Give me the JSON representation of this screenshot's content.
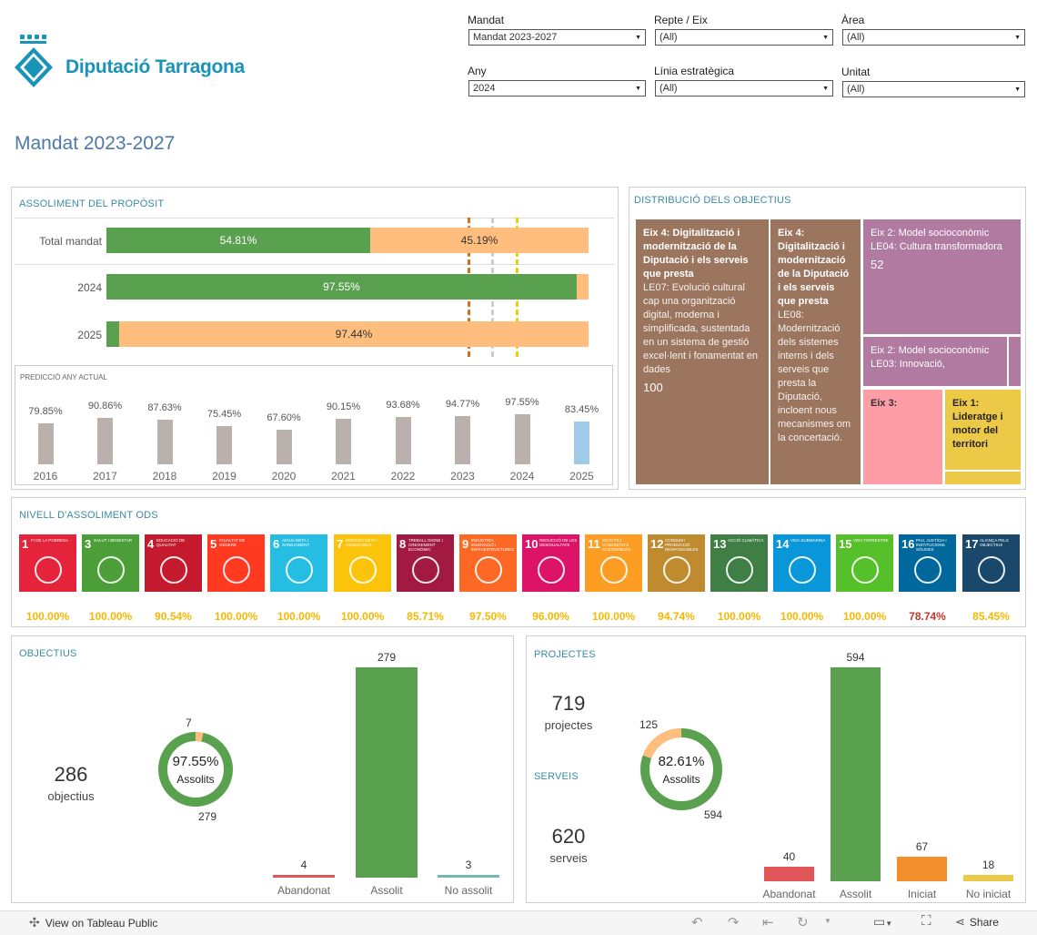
{
  "header": {
    "logo_text": "Diputació Tarragona",
    "page_title": "Mandat 2023-2027"
  },
  "filters": {
    "mandat": {
      "label": "Mandat",
      "value": "Mandat 2023-2027"
    },
    "repte": {
      "label": "Repte / Eix",
      "value": "(All)"
    },
    "area": {
      "label": "Àrea",
      "value": "(All)"
    },
    "any": {
      "label": "Any",
      "value": "2024"
    },
    "linia": {
      "label": "Línia estratègica",
      "value": "(All)"
    },
    "unitat": {
      "label": "Unitat",
      "value": "(All)"
    }
  },
  "proposit": {
    "title": "ASSOLIMENT DEL PROPÒSIT",
    "rows": [
      {
        "label": "Total mandat",
        "green": 54.81,
        "green_label": "54.81%",
        "orange_label": "45.19%"
      },
      {
        "label": "2024",
        "green": 97.55,
        "green_label": "97.55%",
        "orange_label": ""
      },
      {
        "label": "2025",
        "green": 2.56,
        "green_label": "",
        "orange_label": "97.44%"
      }
    ],
    "prediccio_title": "PREDICCIÓ ANY ACTUAL",
    "prediccio": [
      {
        "year": "2016",
        "value": 79.85,
        "label": "79.85%"
      },
      {
        "year": "2017",
        "value": 90.86,
        "label": "90.86%"
      },
      {
        "year": "2018",
        "value": 87.63,
        "label": "87.63%"
      },
      {
        "year": "2019",
        "value": 75.45,
        "label": "75.45%"
      },
      {
        "year": "2020",
        "value": 67.6,
        "label": "67.60%"
      },
      {
        "year": "2021",
        "value": 90.15,
        "label": "90.15%"
      },
      {
        "year": "2022",
        "value": 93.68,
        "label": "93.68%"
      },
      {
        "year": "2023",
        "value": 94.77,
        "label": "94.77%"
      },
      {
        "year": "2024",
        "value": 97.55,
        "label": "97.55%"
      },
      {
        "year": "2025",
        "value": 83.45,
        "label": "83.45%"
      }
    ]
  },
  "distribucio": {
    "title": "DISTRIBUCIÓ DELS OBJECTIUS",
    "cells": [
      {
        "head": "Eix 4: Digitalització i modernització de la Diputació i els serveis que presta",
        "body": "LE07: Evolució cultural cap una organització digital, moderna i simplificada, sustentada en un sistema de gestió excel·lent i fonamentat en dades",
        "num": "100"
      },
      {
        "head": "Eix 4: Digitalització i modernització de la Diputació i els serveis que presta",
        "body": "LE08: Modernització dels sistemes interns i dels serveis que presta la Diputació, incloent nous mecanismes om la concertació.",
        "num": ""
      },
      {
        "head": "Eix 2: Model socioconòmic",
        "body": "LE04: Cultura transformadora",
        "num": "52"
      },
      {
        "head": "Eix 2: Model socioconòmic",
        "body": "LE03: Innovació,",
        "num": ""
      },
      {
        "head": "Eix 3:",
        "body": "",
        "num": ""
      },
      {
        "head": "Eix 1: Lideratge i motor del territori",
        "body": "",
        "num": ""
      }
    ]
  },
  "ods": {
    "title": "NIVELL D'ASSOLIMENT ODS",
    "items": [
      {
        "n": "1",
        "label": "FI DE LA POBRESA",
        "pct": "100.00%",
        "color": "#e5243b"
      },
      {
        "n": "3",
        "label": "SALUT I BENESTAR",
        "pct": "100.00%",
        "color": "#4c9f38"
      },
      {
        "n": "4",
        "label": "EDUCACIÓ DE QUALITAT",
        "pct": "90.54%",
        "color": "#c5192d"
      },
      {
        "n": "5",
        "label": "IGUALTAT DE GÈNERE",
        "pct": "100.00%",
        "color": "#ff3a21"
      },
      {
        "n": "6",
        "label": "AIGUA NETA I SANEJAMENT",
        "pct": "100.00%",
        "color": "#26bde2"
      },
      {
        "n": "7",
        "label": "ENERGIA NETA I ASSEQUIBLE",
        "pct": "100.00%",
        "color": "#fcc30b"
      },
      {
        "n": "8",
        "label": "TREBALL DIGNE I CREIXEMENT ECONÒMIC",
        "pct": "85.71%",
        "color": "#a21942"
      },
      {
        "n": "9",
        "label": "INDÚSTRIA, INNOVACIÓ I INFRAESTRUCTURES",
        "pct": "97.50%",
        "color": "#fd6925"
      },
      {
        "n": "10",
        "label": "REDUCCIÓ DE LES DESIGUALTATS",
        "pct": "96.00%",
        "color": "#dd1367"
      },
      {
        "n": "11",
        "label": "CIUTATS I COMUNITATS SOSTENIBLES",
        "pct": "100.00%",
        "color": "#fd9d24"
      },
      {
        "n": "12",
        "label": "CONSUM I PRODUCCIÓ RESPONSABLES",
        "pct": "94.74%",
        "color": "#bf8b2e"
      },
      {
        "n": "13",
        "label": "ACCIÓ CLIMÀTICA",
        "pct": "100.00%",
        "color": "#3f7e44"
      },
      {
        "n": "14",
        "label": "VIDA SUBMARINA",
        "pct": "100.00%",
        "color": "#0a97d9"
      },
      {
        "n": "15",
        "label": "VIDA TERRESTRE",
        "pct": "100.00%",
        "color": "#56c02b"
      },
      {
        "n": "16",
        "label": "PAU, JUSTÍCIA I INSTITUCIONS SÒLIDES",
        "pct": "78.74%",
        "color": "#00689d"
      },
      {
        "n": "17",
        "label": "ALIANÇA PELS OBJECTIUS",
        "pct": "85.45%",
        "color": "#19486a"
      }
    ]
  },
  "objectius": {
    "title": "OBJECTIUS",
    "total": "286",
    "total_label": "objectius",
    "donut_pct": "97.55%",
    "donut_label": "Assolits",
    "donut_small": "7",
    "donut_big": "279",
    "bars": [
      {
        "label": "Abandonat",
        "value": 4,
        "color": "#e15759"
      },
      {
        "label": "Assolit",
        "value": 279,
        "color": "#59a14f"
      },
      {
        "label": "No assolit",
        "value": 3,
        "color": "#76b7b2"
      }
    ]
  },
  "projectes": {
    "title": "PROJECTES",
    "total": "719",
    "total_label": "projectes",
    "serveis_title": "SERVEIS",
    "serveis_total": "620",
    "serveis_label": "serveis",
    "donut_pct": "82.61%",
    "donut_label": "Assolits",
    "donut_small": "125",
    "donut_big": "594",
    "bars": [
      {
        "label": "Abandonat",
        "value": 40,
        "color": "#e15759"
      },
      {
        "label": "Assolit",
        "value": 594,
        "color": "#59a14f"
      },
      {
        "label": "Iniciat",
        "value": 67,
        "color": "#f28e2b"
      },
      {
        "label": "No iniciat",
        "value": 18,
        "color": "#edc948"
      }
    ]
  },
  "footer": {
    "view_label": "View on Tableau Public",
    "share_label": "Share"
  },
  "colors": {
    "green": "#59a14f",
    "orange": "#ffbe7d",
    "gray_bar": "#bab0ac",
    "blue_bar": "#a0cbe8"
  }
}
